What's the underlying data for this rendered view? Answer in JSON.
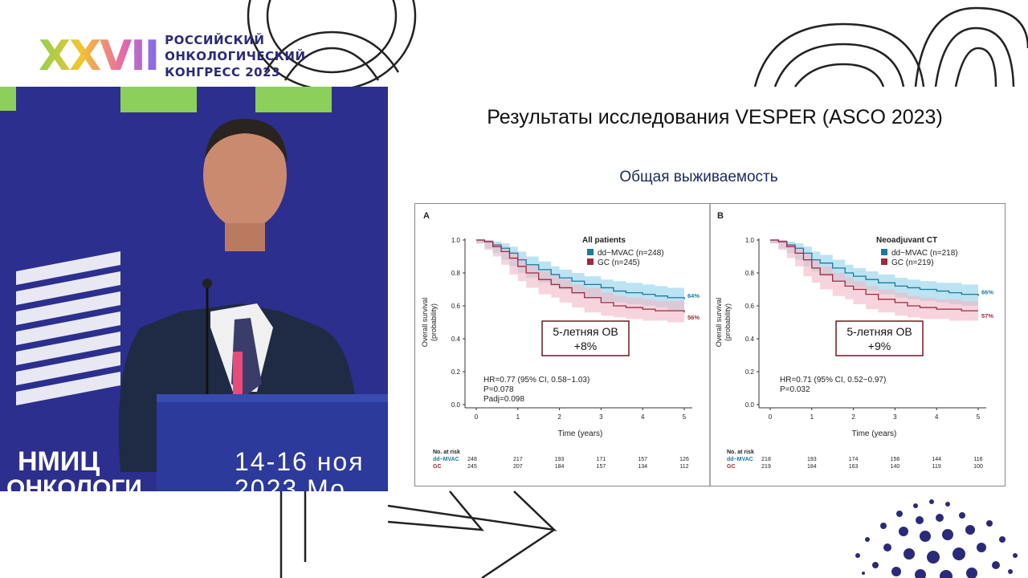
{
  "logo": {
    "numeral": "XXVII",
    "line1": "РОССИЙСКИЙ",
    "line2": "ОНКОЛОГИЧЕСКИЙ",
    "line3": "КОНГРЕСС 2023"
  },
  "video": {
    "banner_text": "НМИЦ",
    "banner_text_2": "ОНКОЛОГИ",
    "dates": "14-16 ноя",
    "year_line": "2023 Мо"
  },
  "slide": {
    "title": "Результаты исследования VESPER (ASCO 2023)",
    "subtitle": "Общая выживаемость"
  },
  "colors": {
    "ddmvac": "#1a7aa0",
    "gc": "#9e2a3c",
    "ddmvac_band": "#8fd0ea",
    "gc_band": "#f2b8c6",
    "box_border": "#6e1a22",
    "brand": "#2b2a7a"
  },
  "chart_data": [
    {
      "type": "line",
      "panel_label": "A",
      "legend_title": "All patients",
      "xlabel": "Time (years)",
      "ylabel": "Overall survival",
      "ylabel2": "(probability)",
      "xlim": [
        0,
        5
      ],
      "ylim": [
        0,
        1
      ],
      "xticks": [
        "0",
        "1",
        "2",
        "3",
        "4",
        "5"
      ],
      "yticks": [
        "0.0",
        "0.2",
        "0.4",
        "0.6",
        "0.8",
        "1.0"
      ],
      "series": [
        {
          "name": "dd−MVAC (n=248)",
          "key": "ddmvac",
          "end_label": "64%",
          "x": [
            0,
            0.2,
            0.4,
            0.6,
            0.8,
            1.0,
            1.2,
            1.5,
            1.8,
            2.0,
            2.3,
            2.6,
            3.0,
            3.3,
            3.6,
            4.0,
            4.3,
            4.6,
            5.0
          ],
          "y": [
            1.0,
            0.99,
            0.97,
            0.95,
            0.92,
            0.88,
            0.85,
            0.82,
            0.79,
            0.77,
            0.75,
            0.73,
            0.71,
            0.69,
            0.68,
            0.67,
            0.66,
            0.65,
            0.64
          ],
          "band_lo": [
            1.0,
            0.98,
            0.95,
            0.92,
            0.88,
            0.84,
            0.8,
            0.77,
            0.74,
            0.72,
            0.7,
            0.67,
            0.65,
            0.63,
            0.62,
            0.61,
            0.6,
            0.59,
            0.57
          ],
          "band_hi": [
            1.0,
            1.0,
            0.99,
            0.98,
            0.96,
            0.93,
            0.9,
            0.87,
            0.84,
            0.82,
            0.8,
            0.78,
            0.76,
            0.75,
            0.74,
            0.73,
            0.72,
            0.71,
            0.7
          ]
        },
        {
          "name": "GC (n=245)",
          "key": "gc",
          "end_label": "56%",
          "x": [
            0,
            0.2,
            0.4,
            0.6,
            0.8,
            1.0,
            1.2,
            1.5,
            1.8,
            2.0,
            2.3,
            2.6,
            3.0,
            3.3,
            3.6,
            4.0,
            4.3,
            4.6,
            5.0
          ],
          "y": [
            1.0,
            0.99,
            0.96,
            0.93,
            0.89,
            0.84,
            0.8,
            0.76,
            0.73,
            0.71,
            0.68,
            0.65,
            0.62,
            0.6,
            0.59,
            0.58,
            0.57,
            0.57,
            0.56
          ],
          "band_lo": [
            1.0,
            0.98,
            0.94,
            0.9,
            0.85,
            0.79,
            0.75,
            0.71,
            0.67,
            0.65,
            0.62,
            0.59,
            0.56,
            0.54,
            0.53,
            0.52,
            0.51,
            0.51,
            0.5
          ],
          "band_hi": [
            1.0,
            1.0,
            0.98,
            0.96,
            0.93,
            0.89,
            0.85,
            0.81,
            0.78,
            0.76,
            0.73,
            0.71,
            0.68,
            0.66,
            0.65,
            0.64,
            0.63,
            0.63,
            0.62
          ]
        }
      ],
      "annotation": {
        "line1": "5-летняя ОВ",
        "line2": "+8%"
      },
      "stats": [
        "HR=0.77 (95% CI, 0.58−1.03)",
        "P=0.078",
        "Padj=0.098"
      ],
      "risk_table": {
        "title": "No. at risk",
        "rows": [
          {
            "label": "dd−MVAC",
            "key": "ddmvac",
            "values": [
              "248",
              "217",
              "193",
              "171",
              "157",
              "126"
            ]
          },
          {
            "label": "GC",
            "key": "gc",
            "values": [
              "245",
              "207",
              "184",
              "157",
              "134",
              "112"
            ]
          }
        ]
      }
    },
    {
      "type": "line",
      "panel_label": "B",
      "legend_title": "Neoadjuvant CT",
      "xlabel": "Time (years)",
      "ylabel": "Overall survival",
      "ylabel2": "(probability)",
      "xlim": [
        0,
        5
      ],
      "ylim": [
        0,
        1
      ],
      "xticks": [
        "0",
        "1",
        "2",
        "3",
        "4",
        "5"
      ],
      "yticks": [
        "0.0",
        "0.2",
        "0.4",
        "0.6",
        "0.8",
        "1.0"
      ],
      "series": [
        {
          "name": "dd−MVAC (n=218)",
          "key": "ddmvac",
          "end_label": "66%",
          "x": [
            0,
            0.2,
            0.4,
            0.6,
            0.8,
            1.0,
            1.2,
            1.5,
            1.8,
            2.0,
            2.3,
            2.6,
            3.0,
            3.3,
            3.6,
            4.0,
            4.3,
            4.6,
            5.0
          ],
          "y": [
            1.0,
            0.99,
            0.97,
            0.95,
            0.92,
            0.88,
            0.86,
            0.83,
            0.8,
            0.78,
            0.76,
            0.74,
            0.72,
            0.71,
            0.7,
            0.69,
            0.68,
            0.67,
            0.66
          ],
          "band_lo": [
            1.0,
            0.98,
            0.95,
            0.92,
            0.88,
            0.84,
            0.81,
            0.78,
            0.75,
            0.73,
            0.71,
            0.69,
            0.67,
            0.65,
            0.64,
            0.63,
            0.62,
            0.61,
            0.6
          ],
          "band_hi": [
            1.0,
            1.0,
            0.99,
            0.98,
            0.96,
            0.93,
            0.91,
            0.88,
            0.85,
            0.83,
            0.81,
            0.79,
            0.77,
            0.76,
            0.75,
            0.74,
            0.74,
            0.73,
            0.72
          ]
        },
        {
          "name": "GC (n=219)",
          "key": "gc",
          "end_label": "57%",
          "x": [
            0,
            0.2,
            0.4,
            0.6,
            0.8,
            1.0,
            1.2,
            1.5,
            1.8,
            2.0,
            2.3,
            2.6,
            3.0,
            3.3,
            3.6,
            4.0,
            4.3,
            4.6,
            5.0
          ],
          "y": [
            1.0,
            0.99,
            0.96,
            0.92,
            0.88,
            0.83,
            0.79,
            0.75,
            0.72,
            0.7,
            0.67,
            0.64,
            0.62,
            0.6,
            0.59,
            0.58,
            0.58,
            0.57,
            0.57
          ],
          "band_lo": [
            1.0,
            0.98,
            0.94,
            0.89,
            0.84,
            0.78,
            0.74,
            0.7,
            0.66,
            0.64,
            0.61,
            0.58,
            0.56,
            0.54,
            0.53,
            0.52,
            0.52,
            0.51,
            0.51
          ],
          "band_hi": [
            1.0,
            1.0,
            0.98,
            0.95,
            0.92,
            0.88,
            0.84,
            0.8,
            0.77,
            0.75,
            0.72,
            0.7,
            0.68,
            0.66,
            0.65,
            0.64,
            0.64,
            0.63,
            0.63
          ]
        }
      ],
      "annotation": {
        "line1": "5-летняя ОВ",
        "line2": "+9%"
      },
      "stats": [
        "HR=0.71 (95% CI, 0.52−0.97)",
        "P=0.032"
      ],
      "risk_table": {
        "title": "No. at risk",
        "rows": [
          {
            "label": "dd−MVAC",
            "key": "ddmvac",
            "values": [
              "218",
              "193",
              "174",
              "156",
              "144",
              "116"
            ]
          },
          {
            "label": "GC",
            "key": "gc",
            "values": [
              "219",
              "184",
              "163",
              "140",
              "119",
              "100"
            ]
          }
        ]
      }
    }
  ]
}
